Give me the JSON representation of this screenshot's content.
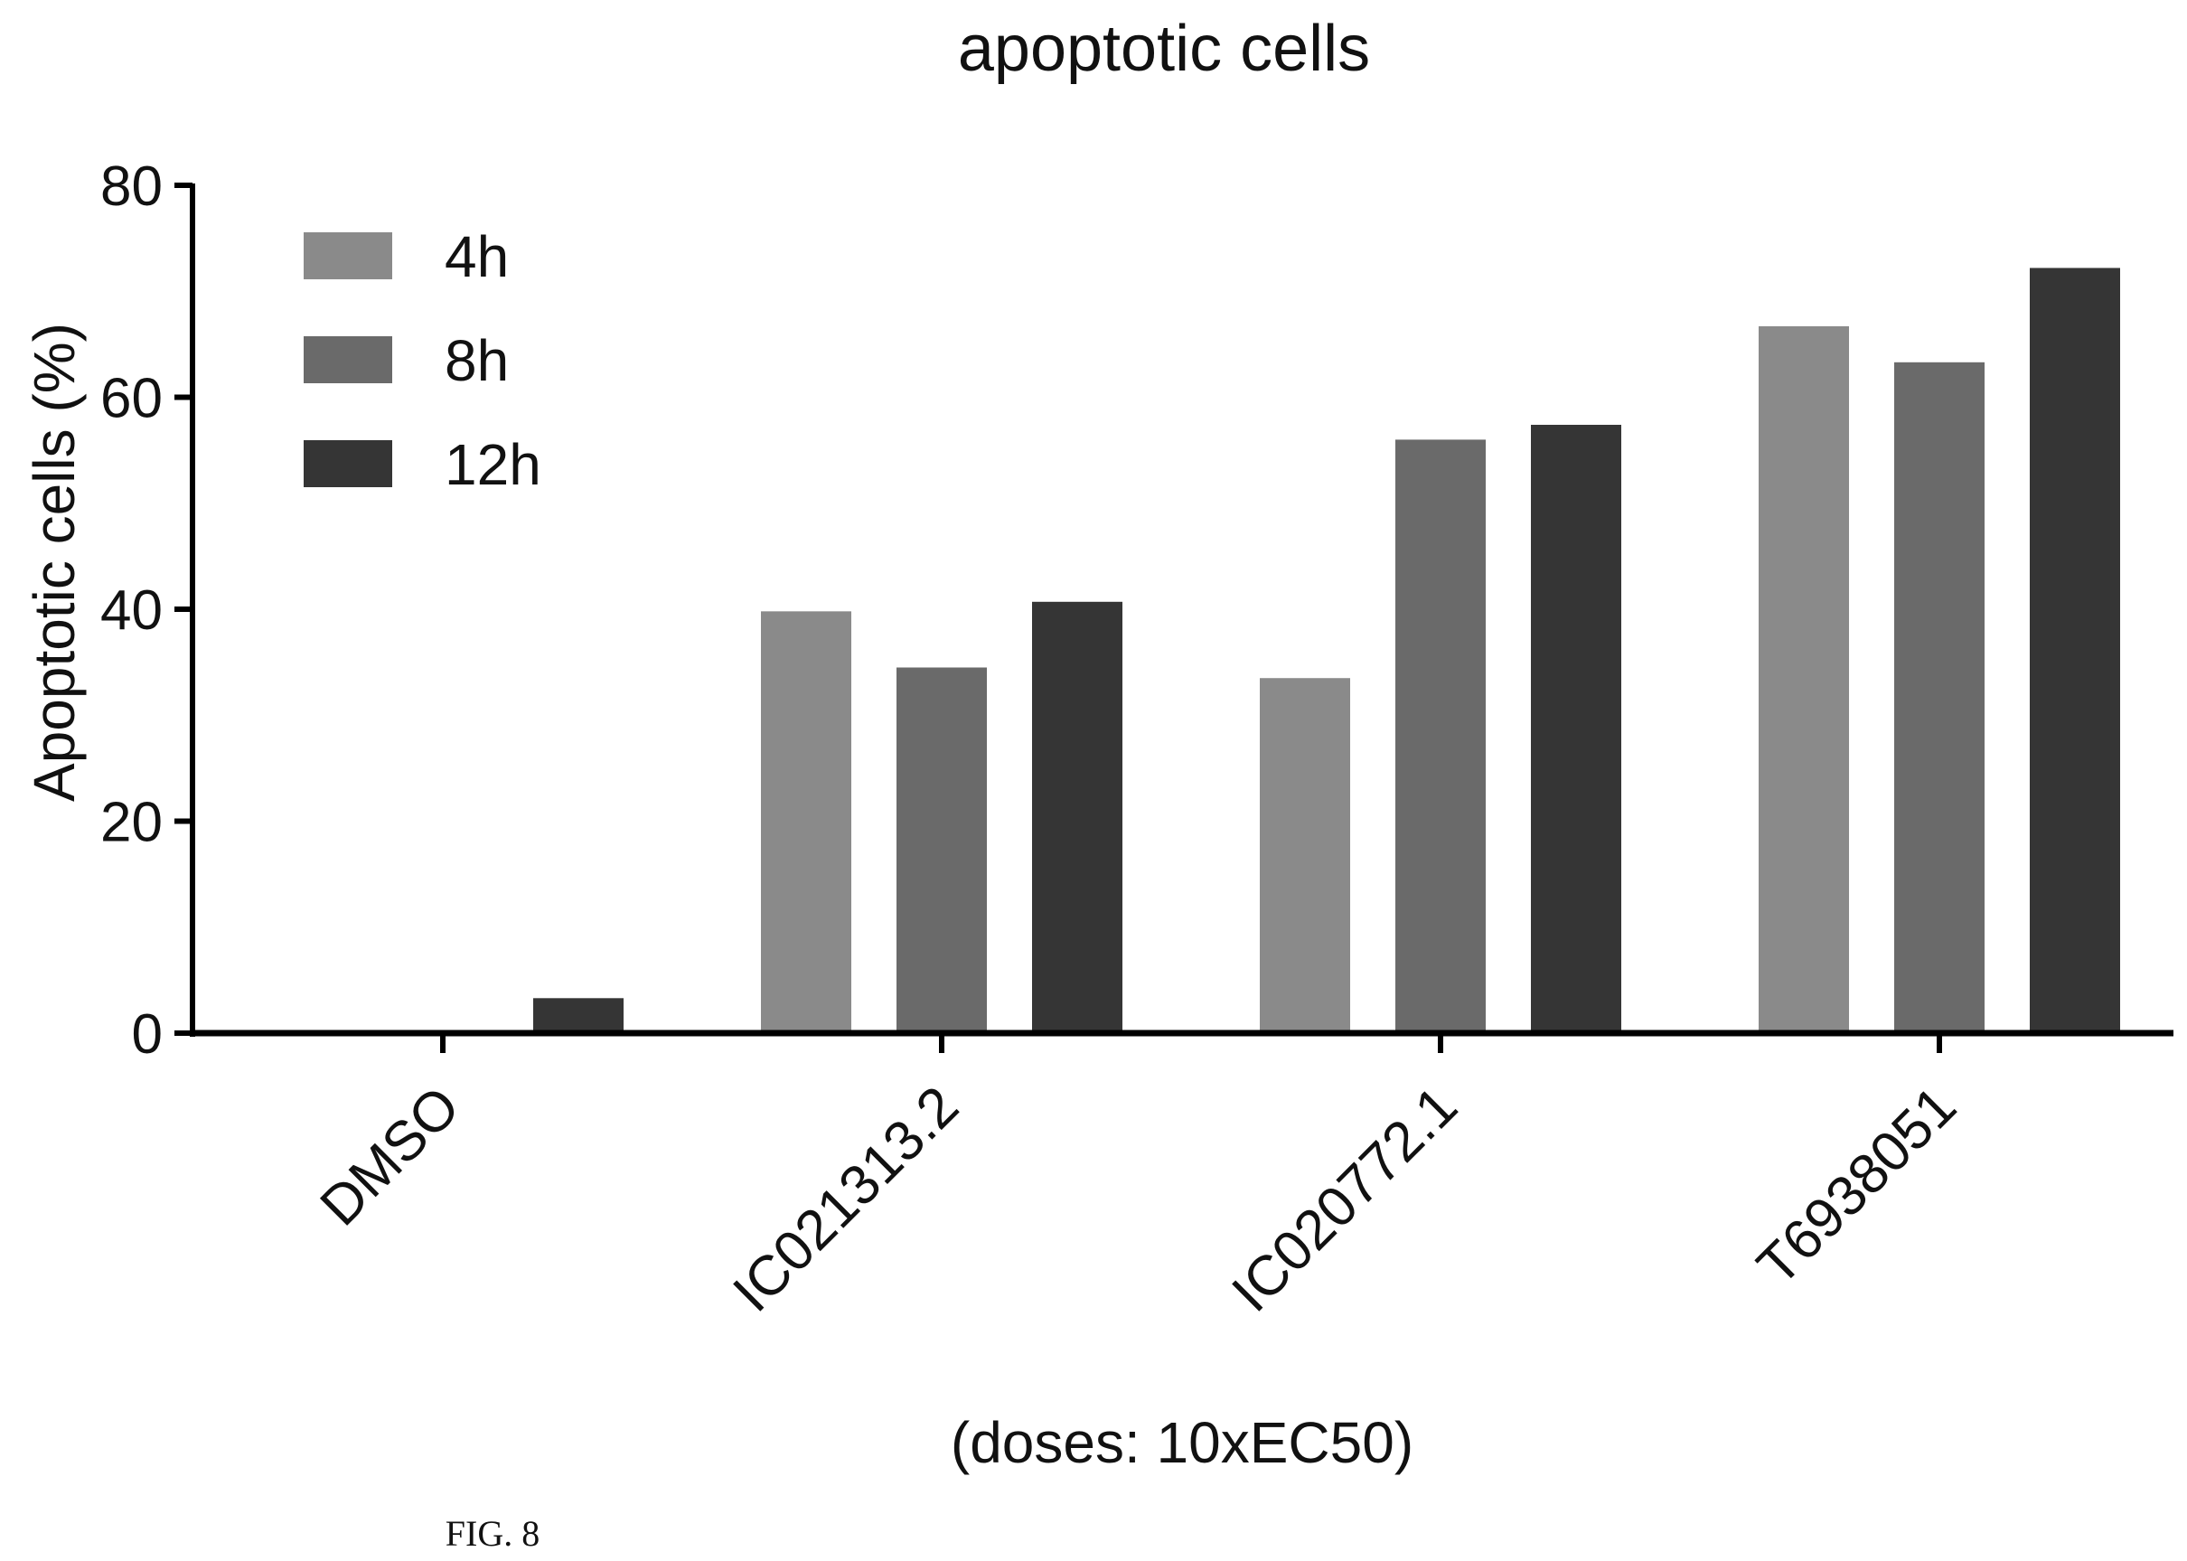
{
  "chart_data": {
    "type": "bar",
    "title": "apoptotic cells",
    "ylabel": "Apoptotic cells (%)",
    "xlabel": "(doses: 10xEC50)",
    "ylim": [
      0,
      80
    ],
    "yticks": [
      "0",
      "20",
      "40",
      "60",
      "80"
    ],
    "categories": [
      "DMSO",
      "IC021313.2",
      "IC020772.1",
      "T6938051"
    ],
    "series": [
      {
        "name": "4h",
        "values": [
          0,
          39.8,
          33.5,
          66.7
        ],
        "color": "#8a8a8a"
      },
      {
        "name": "8h",
        "values": [
          0,
          34.5,
          56.0,
          63.3
        ],
        "color": "#6a6a6a"
      },
      {
        "name": "12h",
        "values": [
          3.3,
          40.7,
          57.4,
          72.2
        ],
        "color": "#353535"
      }
    ],
    "legend_position": "top-left",
    "grid": false
  },
  "caption": "FIG. 8"
}
